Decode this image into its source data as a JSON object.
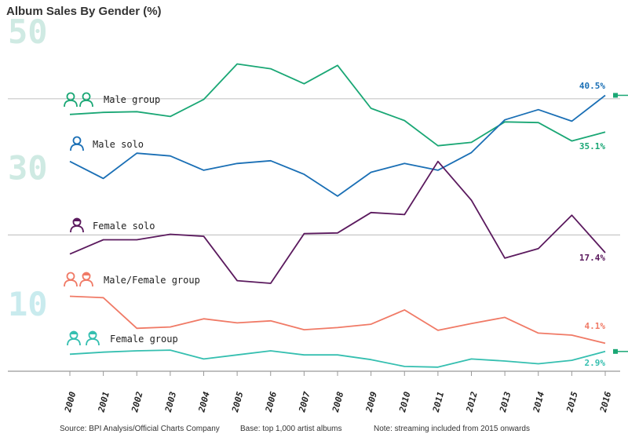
{
  "chart_data": {
    "type": "line",
    "title": "Album Sales By Gender (%)",
    "xlabel": "",
    "ylabel": "",
    "ylim": [
      0,
      50
    ],
    "yticks": [
      {
        "value": 50,
        "label": "50"
      },
      {
        "value": 30,
        "label": "30"
      },
      {
        "value": 10,
        "label": "10"
      }
    ],
    "categories": [
      "2000",
      "2001",
      "2002",
      "2003",
      "2004",
      "2005",
      "2006",
      "2007",
      "2008",
      "2009",
      "2010",
      "2011",
      "2012",
      "2013",
      "2014",
      "2015",
      "2016"
    ],
    "series": [
      {
        "name": "Male group",
        "icon": "male-group-icon",
        "color": "#1aa775",
        "end_label": "35.1%",
        "values": [
          37.7,
          38.0,
          38.1,
          37.4,
          39.9,
          45.1,
          44.4,
          42.2,
          44.9,
          38.6,
          36.8,
          33.1,
          33.6,
          36.6,
          36.5,
          33.8,
          35.1
        ]
      },
      {
        "name": "Male solo",
        "icon": "male-solo-icon",
        "color": "#1a6fb5",
        "end_label": "40.5%",
        "values": [
          30.8,
          28.3,
          32.0,
          31.6,
          29.5,
          30.5,
          30.9,
          28.9,
          25.7,
          29.2,
          30.5,
          29.5,
          32.1,
          36.9,
          38.4,
          36.7,
          40.5
        ]
      },
      {
        "name": "Female solo",
        "icon": "female-solo-icon",
        "color": "#5b1a5e",
        "end_label": "17.4%",
        "values": [
          17.2,
          19.3,
          19.3,
          20.1,
          19.8,
          13.3,
          12.9,
          20.2,
          20.3,
          23.3,
          23.0,
          30.8,
          25.1,
          16.6,
          18.0,
          22.9,
          17.4
        ]
      },
      {
        "name": "Male/Female group",
        "icon": "male-female-group-icon",
        "color": "#f07a66",
        "end_label": "4.1%",
        "values": [
          11.0,
          10.8,
          6.3,
          6.5,
          7.7,
          7.1,
          7.4,
          6.1,
          6.4,
          6.9,
          9.0,
          6.0,
          7.0,
          7.9,
          5.6,
          5.3,
          4.1
        ]
      },
      {
        "name": "Female group",
        "icon": "female-group-icon",
        "color": "#35bfb0",
        "end_label": "2.9%",
        "values": [
          2.5,
          2.8,
          3.0,
          3.1,
          1.8,
          2.4,
          3.0,
          2.4,
          2.4,
          1.7,
          0.7,
          0.6,
          1.8,
          1.5,
          1.1,
          1.6,
          2.9
        ]
      }
    ],
    "legend": "inline labels on left"
  },
  "footer": {
    "source": "Source: BPI Analysis/Official Charts Company",
    "base": "Base: top 1,000 artist albums",
    "note": "Note: streaming included from 2015 onwards"
  },
  "colors": {
    "ytick": "#cfeae3",
    "ytick10": "#c9ebee",
    "gridline": "#c8c8c8",
    "axis": "#999999"
  }
}
